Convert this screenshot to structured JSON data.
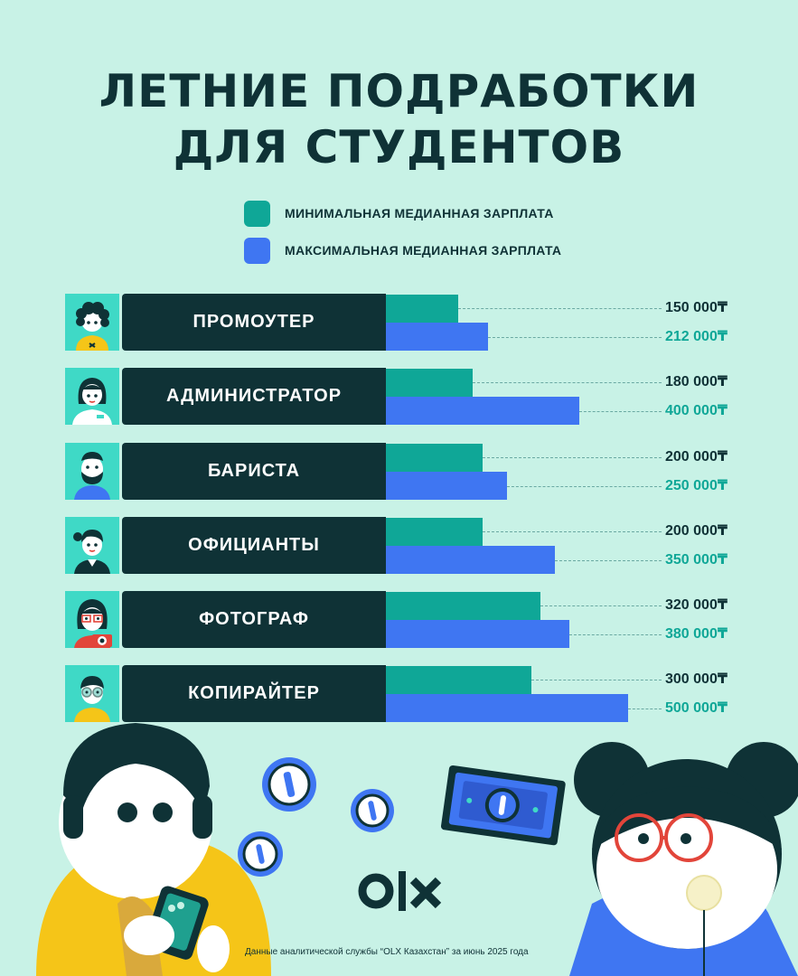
{
  "title": {
    "line1": "ЛЕТНИЕ ПОДРАБОТКИ",
    "line2": "ДЛЯ СТУДЕНТОВ"
  },
  "legend": {
    "min_label": "МИНИМАЛЬНАЯ МЕДИАННАЯ ЗАРПЛАТА",
    "max_label": "МАКСИМАЛЬНАЯ МЕДИАННАЯ ЗАРПЛАТА"
  },
  "colors": {
    "background": "#c8f2e6",
    "dark": "#0f3236",
    "min_series": "#0fa797",
    "max_series": "#3f76f2",
    "avatar_bg": "#3fd9c6"
  },
  "chart_data": {
    "type": "bar",
    "orientation": "horizontal",
    "categories": [
      "ПРОМОУТЕР",
      "АДМИНИСТРАТОР",
      "БАРИСТА",
      "ОФИЦИАНТЫ",
      "ФОТОГРАФ",
      "КОПИРАЙТЕР"
    ],
    "series": [
      {
        "name": "МИНИМАЛЬНАЯ МЕДИАННАЯ ЗАРПЛАТА",
        "values": [
          150000,
          180000,
          200000,
          200000,
          320000,
          300000
        ]
      },
      {
        "name": "МАКСИМАЛЬНАЯ МЕДИАННАЯ ЗАРПЛАТА",
        "values": [
          212000,
          400000,
          250000,
          350000,
          380000,
          500000
        ]
      }
    ],
    "value_labels": {
      "min": [
        "150 000₸",
        "180 000₸",
        "200 000₸",
        "200 000₸",
        "320 000₸",
        "300 000₸"
      ],
      "max": [
        "212 000₸",
        "400 000₸",
        "250 000₸",
        "350 000₸",
        "380 000₸",
        "500 000₸"
      ]
    },
    "legend_position": "top-center",
    "grid": false
  },
  "logo_text": "OLX",
  "footnote": "Данные аналитической службы “OLX Казахстан” за июнь 2025 года",
  "icons": [
    "promoter-avatar-icon",
    "administrator-avatar-icon",
    "barista-avatar-icon",
    "waiter-avatar-icon",
    "photographer-avatar-icon",
    "copywriter-avatar-icon",
    "coin-icon",
    "banknote-icon",
    "phone-icon",
    "olx-logo"
  ]
}
